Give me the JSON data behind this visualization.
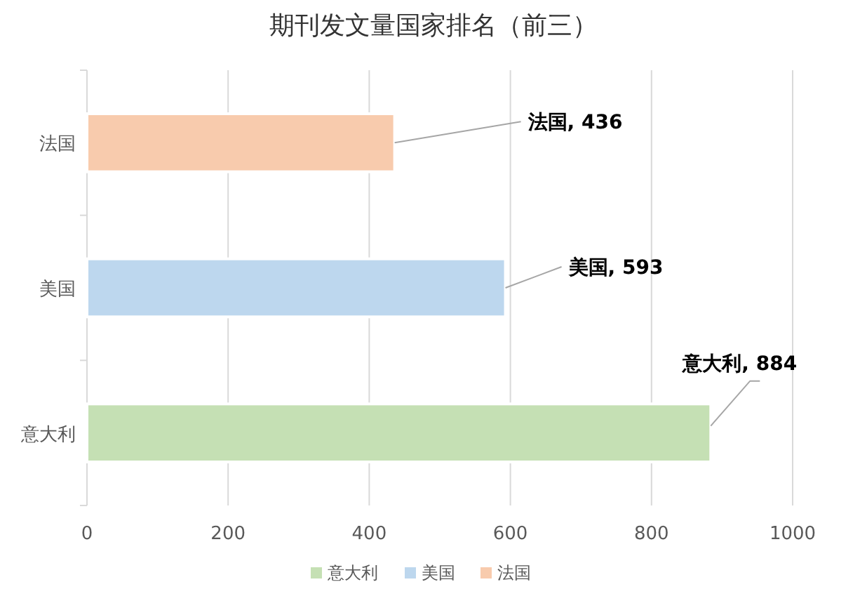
{
  "chart_data": {
    "type": "bar",
    "title": "期刊发文量国家排名（前三）",
    "orientation": "horizontal",
    "stacked": true,
    "categories": [
      "法国",
      "美国",
      "意大利"
    ],
    "series": [
      {
        "name": "意大利",
        "color": "#c5e0b4",
        "values": [
          null,
          null,
          884
        ],
        "value_labels": [
          null,
          null,
          "意大利, 884"
        ]
      },
      {
        "name": "美国",
        "color": "#bdd7ee",
        "values": [
          null,
          593,
          null
        ],
        "value_labels": [
          null,
          "美国, 593",
          null
        ]
      },
      {
        "name": "法国",
        "color": "#f8cbad",
        "values": [
          436,
          null,
          null
        ],
        "value_labels": [
          "法国, 436",
          null,
          null
        ]
      }
    ],
    "xlim": [
      0,
      1000
    ],
    "xticks": [
      0,
      200,
      400,
      600,
      800,
      1000
    ],
    "grid": "x",
    "legend": "bottom"
  }
}
